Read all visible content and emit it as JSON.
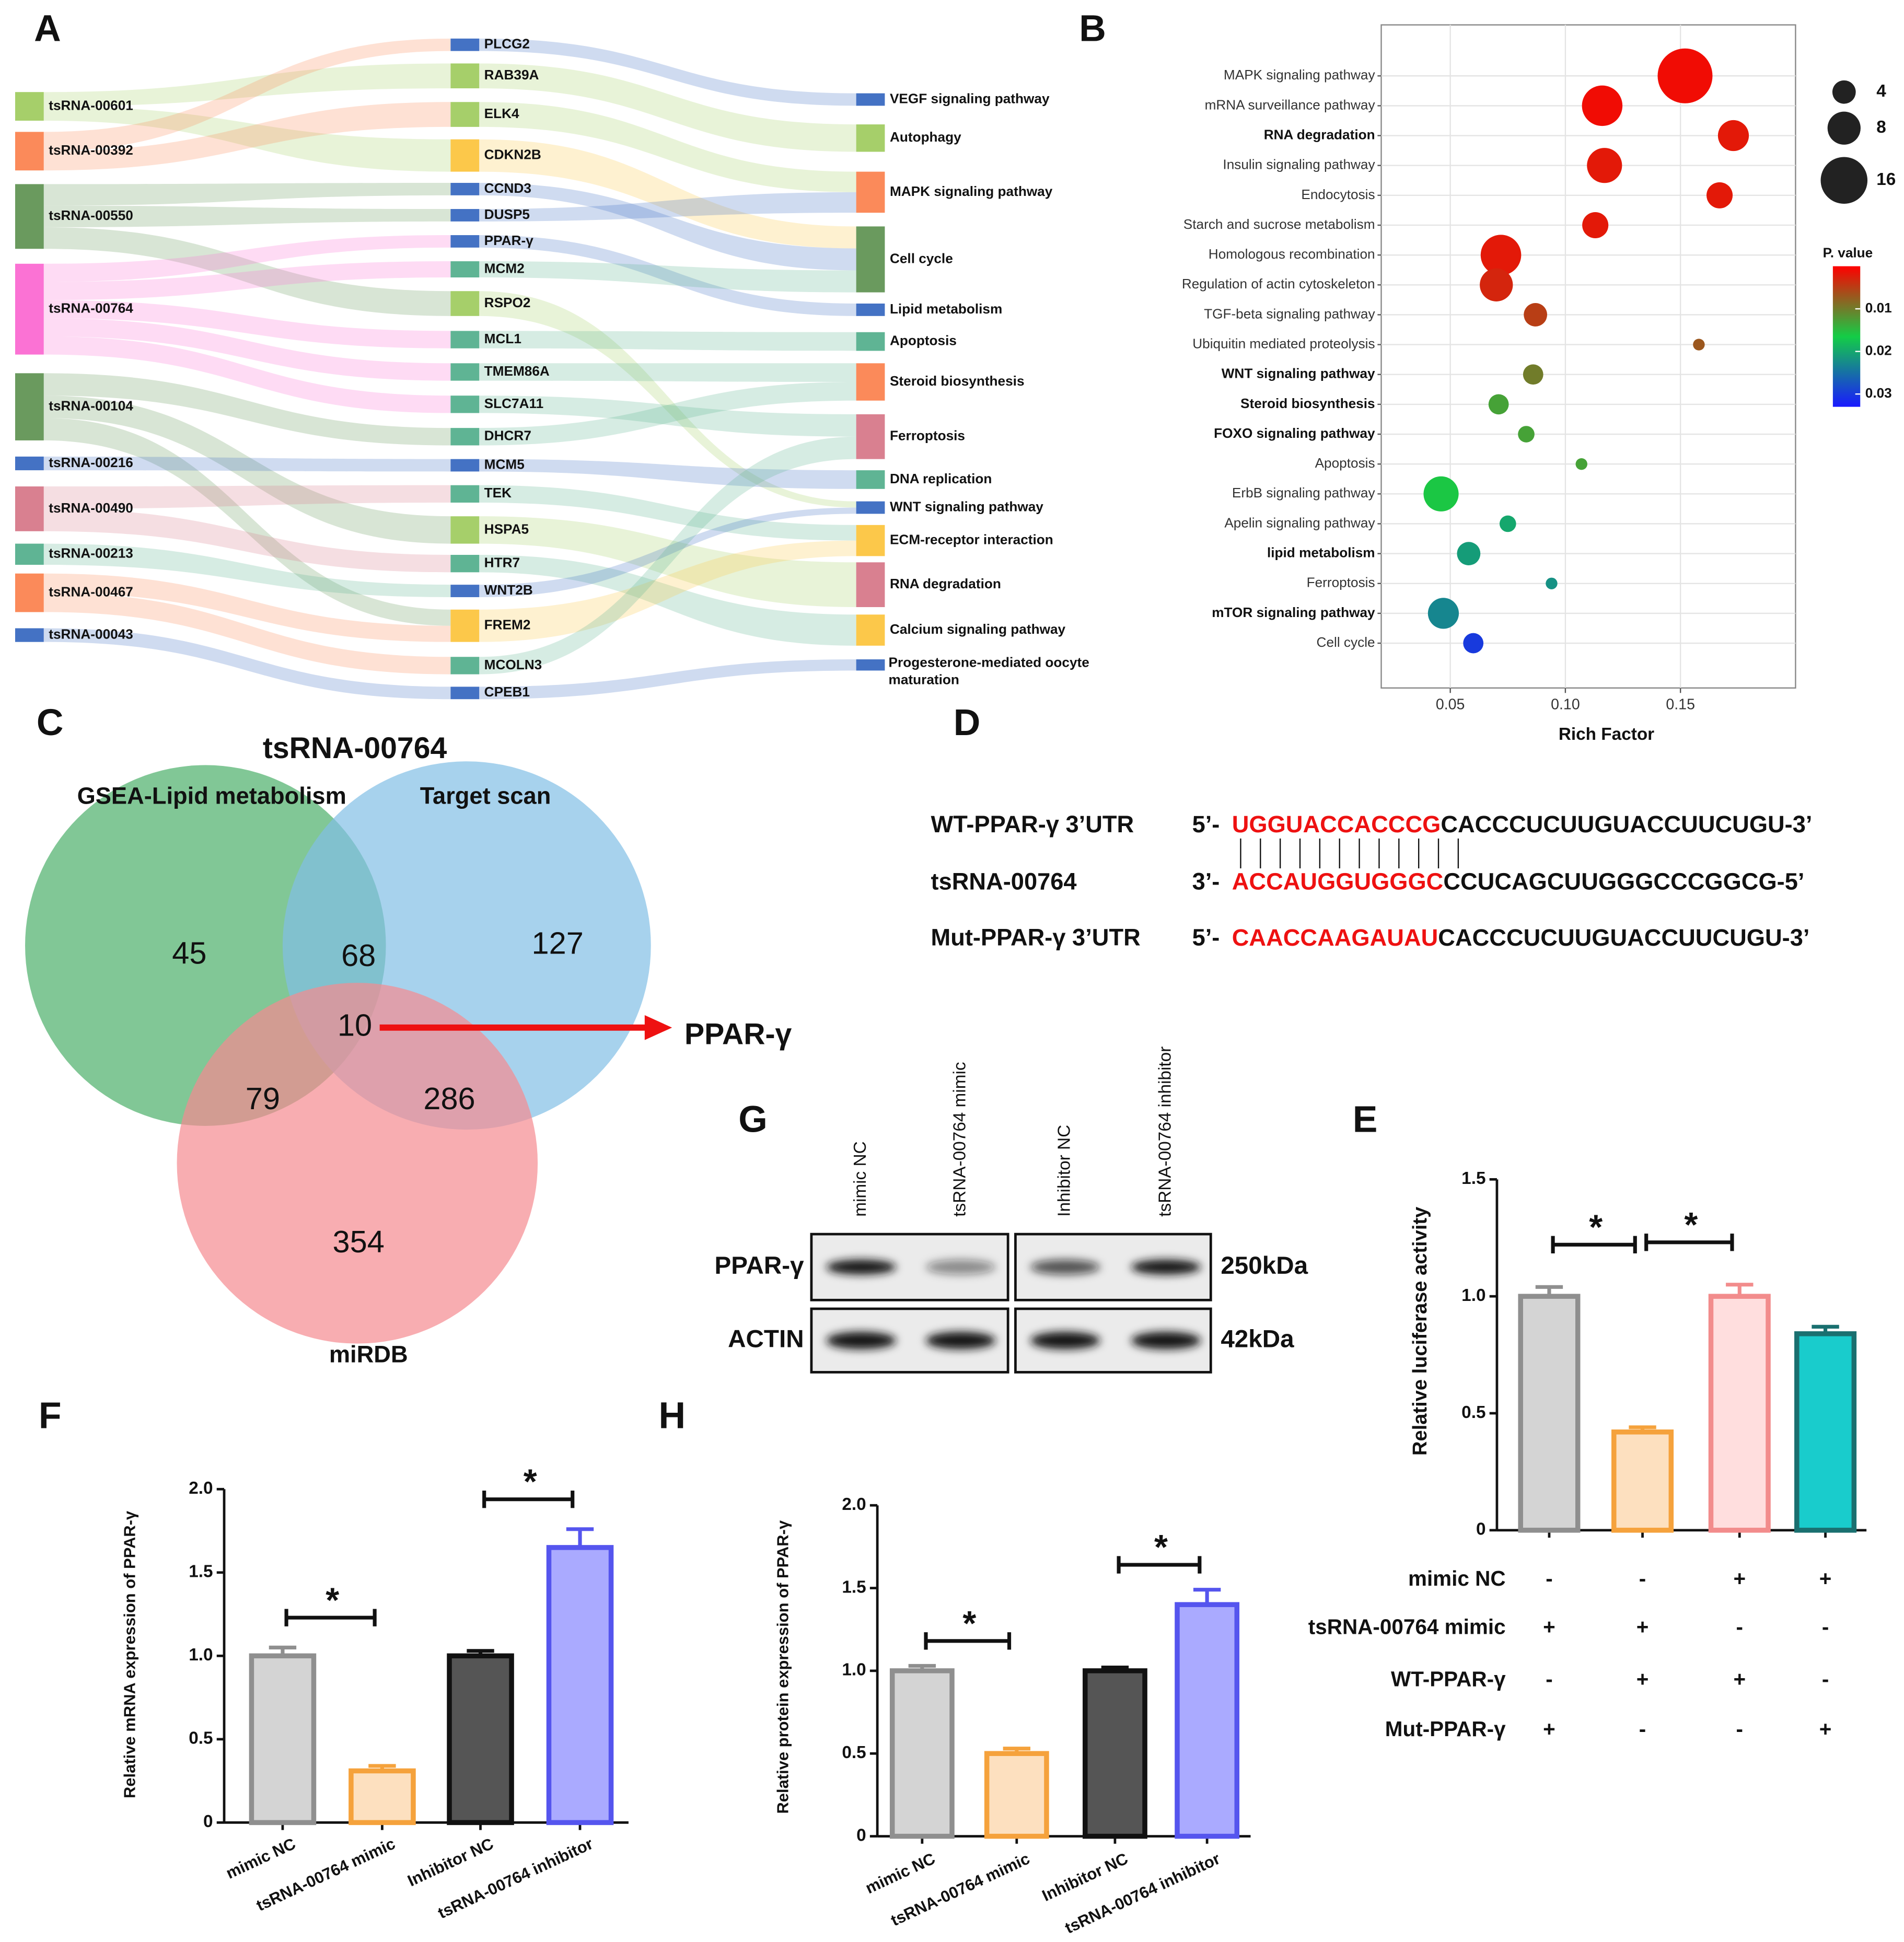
{
  "chart_data": [
    {
      "panel": "A",
      "type": "sankey",
      "left": [
        {
          "label": "tsRNA-00601",
          "color": "#a6cf6a"
        },
        {
          "label": "tsRNA-00392",
          "color": "#fb8a5a"
        },
        {
          "label": "tsRNA-00550",
          "color": "#6a9a5e"
        },
        {
          "label": "tsRNA-00764",
          "color": "#fb72d4"
        },
        {
          "label": "tsRNA-00104",
          "color": "#6a9a5e"
        },
        {
          "label": "tsRNA-00216",
          "color": "#4472c4"
        },
        {
          "label": "tsRNA-00490",
          "color": "#d98090"
        },
        {
          "label": "tsRNA-00213",
          "color": "#5fb494"
        },
        {
          "label": "tsRNA-00467",
          "color": "#fb8a5a"
        },
        {
          "label": "tsRNA-00043",
          "color": "#4472c4"
        }
      ],
      "middle": [
        {
          "label": "PLCG2",
          "color": "#4472c4"
        },
        {
          "label": "RAB39A",
          "color": "#a6cf6a"
        },
        {
          "label": "ELK4",
          "color": "#a6cf6a"
        },
        {
          "label": "CDKN2B",
          "color": "#fcc84a"
        },
        {
          "label": "CCND3",
          "color": "#4472c4"
        },
        {
          "label": "DUSP5",
          "color": "#4472c4"
        },
        {
          "label": "PPAR-γ",
          "color": "#4472c4"
        },
        {
          "label": "MCM2",
          "color": "#5fb494"
        },
        {
          "label": "RSPO2",
          "color": "#a6cf6a"
        },
        {
          "label": "MCL1",
          "color": "#5fb494"
        },
        {
          "label": "TMEM86A",
          "color": "#5fb494"
        },
        {
          "label": "SLC7A11",
          "color": "#5fb494"
        },
        {
          "label": "DHCR7",
          "color": "#5fb494"
        },
        {
          "label": "MCM5",
          "color": "#4472c4"
        },
        {
          "label": "TEK",
          "color": "#5fb494"
        },
        {
          "label": "HSPA5",
          "color": "#a6cf6a"
        },
        {
          "label": "HTR7",
          "color": "#5fb494"
        },
        {
          "label": "WNT2B",
          "color": "#4472c4"
        },
        {
          "label": "FREM2",
          "color": "#fcc84a"
        },
        {
          "label": "MCOLN3",
          "color": "#5fb494"
        },
        {
          "label": "CPEB1",
          "color": "#4472c4"
        }
      ],
      "right": [
        {
          "label": "VEGF signaling pathway",
          "color": "#4472c4"
        },
        {
          "label": "Autophagy",
          "color": "#a6cf6a"
        },
        {
          "label": "MAPK signaling pathway",
          "color": "#fb8a5a"
        },
        {
          "label": "Cell cycle",
          "color": "#6a9a5e"
        },
        {
          "label": "Lipid metabolism",
          "color": "#4472c4"
        },
        {
          "label": "Apoptosis",
          "color": "#5fb494"
        },
        {
          "label": "Steroid biosynthesis",
          "color": "#fb8a5a"
        },
        {
          "label": "Ferroptosis",
          "color": "#d98090"
        },
        {
          "label": "DNA replication",
          "color": "#5fb494"
        },
        {
          "label": "WNT signaling pathway",
          "color": "#4472c4"
        },
        {
          "label": "ECM-receptor interaction",
          "color": "#fcc84a"
        },
        {
          "label": "RNA degradation",
          "color": "#d98090"
        },
        {
          "label": "Calcium signaling pathway",
          "color": "#fcc84a"
        },
        {
          "label": "Progesterone-mediated oocyte maturation",
          "color": "#4472c4"
        }
      ],
      "links": [
        {
          "source": "tsRNA-00601",
          "target": "RAB39A"
        },
        {
          "source": "tsRNA-00601",
          "target": "CDKN2B"
        },
        {
          "source": "tsRNA-00392",
          "target": "PLCG2"
        },
        {
          "source": "tsRNA-00392",
          "target": "ELK4"
        },
        {
          "source": "tsRNA-00550",
          "target": "CCND3"
        },
        {
          "source": "tsRNA-00550",
          "target": "DUSP5"
        },
        {
          "source": "tsRNA-00550",
          "target": "RSPO2"
        },
        {
          "source": "tsRNA-00764",
          "target": "PPAR-γ"
        },
        {
          "source": "tsRNA-00764",
          "target": "MCM2"
        },
        {
          "source": "tsRNA-00764",
          "target": "MCL1"
        },
        {
          "source": "tsRNA-00764",
          "target": "TMEM86A"
        },
        {
          "source": "tsRNA-00764",
          "target": "SLC7A11"
        },
        {
          "source": "tsRNA-00104",
          "target": "DHCR7"
        },
        {
          "source": "tsRNA-00104",
          "target": "HSPA5"
        },
        {
          "source": "tsRNA-00104",
          "target": "FREM2"
        },
        {
          "source": "tsRNA-00216",
          "target": "MCM5"
        },
        {
          "source": "tsRNA-00490",
          "target": "TEK"
        },
        {
          "source": "tsRNA-00490",
          "target": "HTR7"
        },
        {
          "source": "tsRNA-00213",
          "target": "WNT2B"
        },
        {
          "source": "tsRNA-00467",
          "target": "FREM2"
        },
        {
          "source": "tsRNA-00467",
          "target": "MCOLN3"
        },
        {
          "source": "tsRNA-00043",
          "target": "CPEB1"
        },
        {
          "source": "PLCG2",
          "target": "VEGF signaling pathway"
        },
        {
          "source": "RAB39A",
          "target": "Autophagy"
        },
        {
          "source": "ELK4",
          "target": "MAPK signaling pathway"
        },
        {
          "source": "CDKN2B",
          "target": "Cell cycle"
        },
        {
          "source": "CCND3",
          "target": "Cell cycle"
        },
        {
          "source": "DUSP5",
          "target": "MAPK signaling pathway"
        },
        {
          "source": "PPAR-γ",
          "target": "Lipid metabolism"
        },
        {
          "source": "MCM2",
          "target": "Cell cycle"
        },
        {
          "source": "RSPO2",
          "target": "WNT signaling pathway"
        },
        {
          "source": "MCL1",
          "target": "Apoptosis"
        },
        {
          "source": "TMEM86A",
          "target": "Steroid biosynthesis"
        },
        {
          "source": "SLC7A11",
          "target": "Ferroptosis"
        },
        {
          "source": "DHCR7",
          "target": "Steroid biosynthesis"
        },
        {
          "source": "MCM5",
          "target": "DNA replication"
        },
        {
          "source": "TEK",
          "target": "ECM-receptor interaction"
        },
        {
          "source": "HSPA5",
          "target": "RNA degradation"
        },
        {
          "source": "HTR7",
          "target": "Calcium signaling pathway"
        },
        {
          "source": "WNT2B",
          "target": "WNT signaling pathway"
        },
        {
          "source": "FREM2",
          "target": "ECM-receptor interaction"
        },
        {
          "source": "MCOLN3",
          "target": "Ferroptosis"
        },
        {
          "source": "CPEB1",
          "target": "Progesterone-mediated oocyte maturation"
        }
      ]
    },
    {
      "panel": "B",
      "type": "bubble",
      "xlabel": "Rich Factor",
      "categories": [
        "MAPK signaling pathway",
        "mRNA surveillance pathway",
        "RNA degradation",
        "Insulin signaling pathway",
        "Endocytosis",
        "Starch and sucrose metabolism",
        "Homologous recombination",
        "Regulation of actin cytoskeleton",
        "TGF-beta signaling pathway",
        "Ubiquitin mediated proteolysis",
        "WNT signaling pathway",
        "Steroid biosynthesis",
        "FOXO signaling pathway",
        "Apoptosis",
        "ErbB signaling pathway",
        "Apelin signaling pathway",
        "lipid metabolism",
        "Ferroptosis",
        "mTOR signaling pathway",
        "Cell cycle"
      ],
      "bold": [
        false,
        false,
        true,
        false,
        false,
        false,
        false,
        false,
        false,
        false,
        true,
        true,
        true,
        false,
        false,
        false,
        true,
        false,
        true,
        false
      ],
      "x": [
        0.152,
        0.116,
        0.173,
        0.117,
        0.167,
        0.113,
        0.072,
        0.07,
        0.087,
        0.158,
        0.086,
        0.071,
        0.083,
        0.107,
        0.046,
        0.075,
        0.058,
        0.094,
        0.047,
        0.06
      ],
      "size": [
        22,
        12,
        7,
        9,
        5,
        5,
        12,
        8,
        4,
        1,
        3,
        3,
        2,
        1,
        9,
        2,
        4,
        1,
        7,
        3
      ],
      "pvalue": [
        0.001,
        0.001,
        0.002,
        0.002,
        0.002,
        0.002,
        0.002,
        0.003,
        0.005,
        0.007,
        0.01,
        0.013,
        0.013,
        0.013,
        0.016,
        0.02,
        0.021,
        0.022,
        0.023,
        0.03
      ],
      "xlim": [
        0.02,
        0.2
      ],
      "xticks": [
        0.05,
        {
          "value": 0.1,
          "label": "0.10"
        },
        0.15
      ],
      "grid": true,
      "size_legend": [
        4,
        8,
        16
      ],
      "colorbar": {
        "title": "P. value",
        "lim": [
          0,
          0.033
        ],
        "ticks": [
          0.01,
          0.02,
          0.03
        ]
      }
    },
    {
      "panel": "C",
      "type": "venn",
      "title": "tsRNA-00764",
      "sets": [
        {
          "name": "GSEA-Lipid metabolism",
          "color": "#4caf6a"
        },
        {
          "name": "Target scan",
          "color": "#82bfe6"
        },
        {
          "name": "miRDB",
          "color": "#f58a90"
        }
      ],
      "regions": {
        "A": 45,
        "B": 127,
        "C": 354,
        "AB": 68,
        "AC": 79,
        "BC": 286,
        "ABC": 10
      },
      "highlight": "PPAR-γ",
      "arrow_color": "#ee1111"
    },
    {
      "panel": "D",
      "type": "sequence",
      "rows": [
        {
          "label": "WT-PPAR-γ 3’UTR",
          "prefix": "5’-",
          "seed": "UGGUACCACCCG",
          "rest": "CACCCUCUUGUACCUUCUGU-3’"
        },
        {
          "label": "tsRNA-00764",
          "prefix": "3’-",
          "seed": "ACCAUGGUGGGC",
          "rest": "CCUCAGCUUGGGCCCGGCG-5’"
        },
        {
          "label": "Mut-PPAR-γ 3’UTR",
          "prefix": "5’-",
          "seed": "CAACCAAGAUAU",
          "rest": "CACCCUCUUGUACCUUCUGU-3’"
        }
      ],
      "seed_color": "#ee1111"
    },
    {
      "panel": "G",
      "type": "blot",
      "lanes": [
        "mimic  NC",
        "tsRNA-00764 mimic",
        "Inhibitor NC",
        "tsRNA-00764 inhibitor"
      ],
      "rows": [
        {
          "label": "PPAR-γ",
          "size": "250kDa"
        },
        {
          "label": "ACTIN",
          "size": "42kDa"
        }
      ]
    },
    {
      "panel": "E",
      "type": "bar",
      "ylabel": "Relative luciferase activity",
      "ylim": [
        0,
        1.5
      ],
      "yticks": [
        0,
        0.5,
        {
          "value": 1,
          "label": "1.0"
        },
        1.5
      ],
      "values": [
        1,
        0.42,
        1,
        0.84
      ],
      "errors": [
        0.04,
        0.02,
        0.05,
        0.03
      ],
      "fill_colors": [
        "#d4d4d4",
        "#fde0bf",
        "#ffdede",
        "#19cccc"
      ],
      "edge_colors": [
        "#8f8f8f",
        "#f5a23c",
        "#f28c8c",
        "#1a7070"
      ],
      "significance": [
        {
          "from": 0,
          "to": 1,
          "label": "*"
        },
        {
          "from": 1,
          "to": 2,
          "label": "*"
        }
      ],
      "conditions": [
        {
          "label": "mimic  NC",
          "signs": [
            "-",
            "-",
            "+",
            "+"
          ]
        },
        {
          "label": "tsRNA-00764 mimic",
          "signs": [
            "+",
            "+",
            "-",
            "-"
          ]
        },
        {
          "label": "WT-PPAR-γ",
          "signs": [
            "-",
            "+",
            "+",
            "-"
          ]
        },
        {
          "label": "Mut-PPAR-γ",
          "signs": [
            "+",
            "-",
            "-",
            "+"
          ]
        }
      ]
    },
    {
      "panel": "F",
      "type": "bar",
      "ylabel": "Relative mRNA expression of PPAR-γ",
      "categories": [
        "mimic  NC",
        "tsRNA-00764 mimic",
        "Inhibitor NC",
        "tsRNA-00764 inhibitor"
      ],
      "ylim": [
        0,
        2
      ],
      "yticks": [
        0,
        0.5,
        {
          "value": 1,
          "label": "1.0"
        },
        1.5,
        {
          "value": 2,
          "label": "2.0"
        }
      ],
      "values": [
        1,
        0.31,
        1,
        1.65
      ],
      "errors": [
        0.05,
        0.03,
        0.03,
        0.11
      ],
      "fill_colors": [
        "#d4d4d4",
        "#fde0bf",
        "#555555",
        "#aaaaff"
      ],
      "edge_colors": [
        "#8f8f8f",
        "#f5a23c",
        "#111111",
        "#5555ee"
      ],
      "significance": [
        {
          "from": 0,
          "to": 1,
          "label": "*"
        },
        {
          "from": 2,
          "to": 3,
          "label": "*"
        }
      ]
    },
    {
      "panel": "H",
      "type": "bar",
      "ylabel": "Relative protein expression of PPAR-γ",
      "categories": [
        "mimic  NC",
        "tsRNA-00764 mimic",
        "Inhibitor NC",
        "tsRNA-00764 inhibitor"
      ],
      "ylim": [
        0,
        2
      ],
      "yticks": [
        0,
        0.5,
        {
          "value": 1,
          "label": "1.0"
        },
        1.5,
        {
          "value": 2,
          "label": "2.0"
        }
      ],
      "values": [
        1,
        0.5,
        1,
        1.4
      ],
      "errors": [
        0.03,
        0.03,
        0.02,
        0.09
      ],
      "fill_colors": [
        "#d4d4d4",
        "#fde0bf",
        "#555555",
        "#aaaaff"
      ],
      "edge_colors": [
        "#8f8f8f",
        "#f5a23c",
        "#111111",
        "#5555ee"
      ],
      "significance": [
        {
          "from": 0,
          "to": 1,
          "label": "*"
        },
        {
          "from": 2,
          "to": 3,
          "label": "*"
        }
      ]
    }
  ]
}
